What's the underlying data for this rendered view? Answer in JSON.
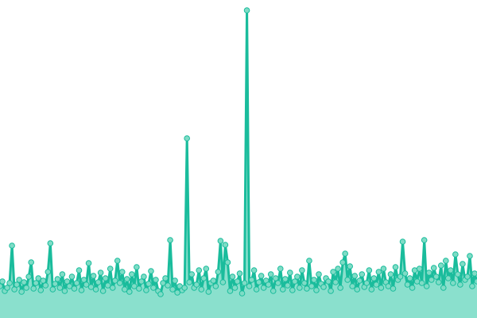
{
  "chart_data": {
    "type": "area",
    "title": "",
    "xlabel": "",
    "ylabel": "",
    "axes_visible": false,
    "grid": false,
    "legend": "none",
    "ylim": [
      0,
      400
    ],
    "colors": {
      "line": "#1abc9c",
      "area": "#8ae0cd",
      "marker_fill": "#7fdcc6",
      "marker_stroke": "#1abc9c"
    },
    "series": [
      {
        "values": [
          40,
          46,
          34,
          38,
          44,
          91,
          36,
          42,
          48,
          33,
          45,
          38,
          52,
          70,
          37,
          44,
          50,
          35,
          47,
          41,
          58,
          94,
          36,
          43,
          49,
          38,
          55,
          34,
          46,
          40,
          52,
          37,
          44,
          60,
          35,
          48,
          42,
          69,
          39,
          53,
          36,
          45,
          57,
          34,
          50,
          41,
          62,
          38,
          47,
          72,
          44,
          58,
          36,
          49,
          33,
          55,
          40,
          64,
          37,
          46,
          52,
          35,
          43,
          59,
          38,
          48,
          34,
          30,
          44,
          50,
          41,
          98,
          36,
          47,
          32,
          40,
          35,
          38,
          226,
          45,
          55,
          38,
          42,
          60,
          36,
          50,
          62,
          33,
          44,
          47,
          40,
          58,
          97,
          45,
          92,
          70,
          34,
          52,
          38,
          46,
          56,
          31,
          44,
          387,
          40,
          48,
          60,
          36,
          45,
          53,
          38,
          47,
          42,
          55,
          34,
          50,
          44,
          62,
          36,
          49,
          41,
          57,
          35,
          46,
          52,
          38,
          60,
          44,
          37,
          72,
          40,
          48,
          35,
          55,
          43,
          39,
          50,
          46,
          34,
          58,
          45,
          62,
          38,
          70,
          81,
          48,
          65,
          40,
          53,
          36,
          47,
          55,
          39,
          44,
          60,
          36,
          50,
          42,
          58,
          38,
          62,
          45,
          40,
          55,
          37,
          64,
          48,
          52,
          96,
          56,
          42,
          50,
          38,
          60,
          46,
          62,
          44,
          98,
          40,
          57,
          48,
          63,
          52,
          45,
          66,
          38,
          72,
          50,
          60,
          44,
          80,
          55,
          42,
          68,
          48,
          52,
          78,
          40,
          56,
          46
        ]
      }
    ]
  }
}
